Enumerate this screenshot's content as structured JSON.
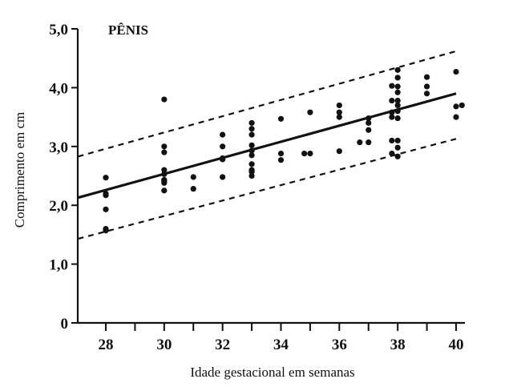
{
  "chart_data": {
    "type": "scatter",
    "title": "PÊNIS",
    "xlabel": "Idade gestacional em semanas",
    "ylabel": "Comprimento em cm",
    "xlim": [
      27.05,
      40
    ],
    "ylim": [
      0,
      5.0
    ],
    "x_ticks": [
      28,
      30,
      32,
      34,
      36,
      38,
      40
    ],
    "x_minor_ticks": [
      29,
      31,
      33,
      35,
      37,
      39
    ],
    "y_ticks": [
      0,
      1.0,
      2.0,
      3.0,
      4.0,
      5.0
    ],
    "y_tick_labels": [
      "0",
      "1,0",
      "2,0",
      "3,0",
      "4,0",
      "5,0"
    ],
    "grid": false,
    "legend": null,
    "series": [
      {
        "name": "observações",
        "kind": "points",
        "points": [
          [
            28,
            2.47
          ],
          [
            28,
            2.2
          ],
          [
            28,
            2.17
          ],
          [
            28,
            1.93
          ],
          [
            28,
            1.6
          ],
          [
            28,
            1.57
          ],
          [
            30,
            3.8
          ],
          [
            30,
            3.0
          ],
          [
            30,
            2.9
          ],
          [
            30,
            2.6
          ],
          [
            30,
            2.53
          ],
          [
            30,
            2.43
          ],
          [
            30,
            2.4
          ],
          [
            30,
            2.38
          ],
          [
            30,
            2.43
          ],
          [
            30,
            2.25
          ],
          [
            31,
            2.48
          ],
          [
            31,
            2.28
          ],
          [
            32,
            3.2
          ],
          [
            32,
            3.0
          ],
          [
            32,
            2.8
          ],
          [
            32,
            2.78
          ],
          [
            32,
            2.48
          ],
          [
            33,
            3.4
          ],
          [
            33,
            3.3
          ],
          [
            33,
            3.2
          ],
          [
            33,
            3.02
          ],
          [
            33,
            2.93
          ],
          [
            33,
            2.85
          ],
          [
            33,
            2.7
          ],
          [
            33,
            2.6
          ],
          [
            33,
            2.57
          ],
          [
            33,
            2.58
          ],
          [
            33,
            2.5
          ],
          [
            34,
            3.47
          ],
          [
            34,
            2.88
          ],
          [
            34,
            2.77
          ],
          [
            34.8,
            2.88
          ],
          [
            35,
            2.88
          ],
          [
            35,
            3.58
          ],
          [
            36,
            3.7
          ],
          [
            36,
            3.58
          ],
          [
            36,
            3.5
          ],
          [
            36,
            2.92
          ],
          [
            36.7,
            3.07
          ],
          [
            37,
            3.48
          ],
          [
            37,
            3.4
          ],
          [
            37,
            3.28
          ],
          [
            37,
            3.07
          ],
          [
            37.8,
            4.03
          ],
          [
            37.8,
            3.78
          ],
          [
            37.8,
            3.58
          ],
          [
            37.8,
            3.5
          ],
          [
            37.8,
            3.1
          ],
          [
            37.8,
            2.88
          ],
          [
            38,
            4.3
          ],
          [
            38,
            4.17
          ],
          [
            38,
            4.02
          ],
          [
            38,
            3.92
          ],
          [
            38,
            3.78
          ],
          [
            38,
            3.7
          ],
          [
            38,
            3.6
          ],
          [
            38,
            3.48
          ],
          [
            38,
            3.1
          ],
          [
            38,
            2.98
          ],
          [
            38,
            2.83
          ],
          [
            39,
            4.18
          ],
          [
            39,
            4.02
          ],
          [
            39,
            3.9
          ],
          [
            40,
            4.27
          ],
          [
            40,
            3.68
          ],
          [
            40,
            3.5
          ],
          [
            40.2,
            3.7
          ]
        ]
      },
      {
        "name": "regressão",
        "kind": "line",
        "style": "solid",
        "x": [
          27.05,
          40
        ],
        "y": [
          2.13,
          3.9
        ]
      },
      {
        "name": "limite superior",
        "kind": "line",
        "style": "dashed",
        "x": [
          27.05,
          40
        ],
        "y": [
          2.83,
          4.62
        ]
      },
      {
        "name": "limite inferior",
        "kind": "line",
        "style": "dashed",
        "x": [
          27.05,
          40
        ],
        "y": [
          1.43,
          3.13
        ]
      }
    ]
  }
}
